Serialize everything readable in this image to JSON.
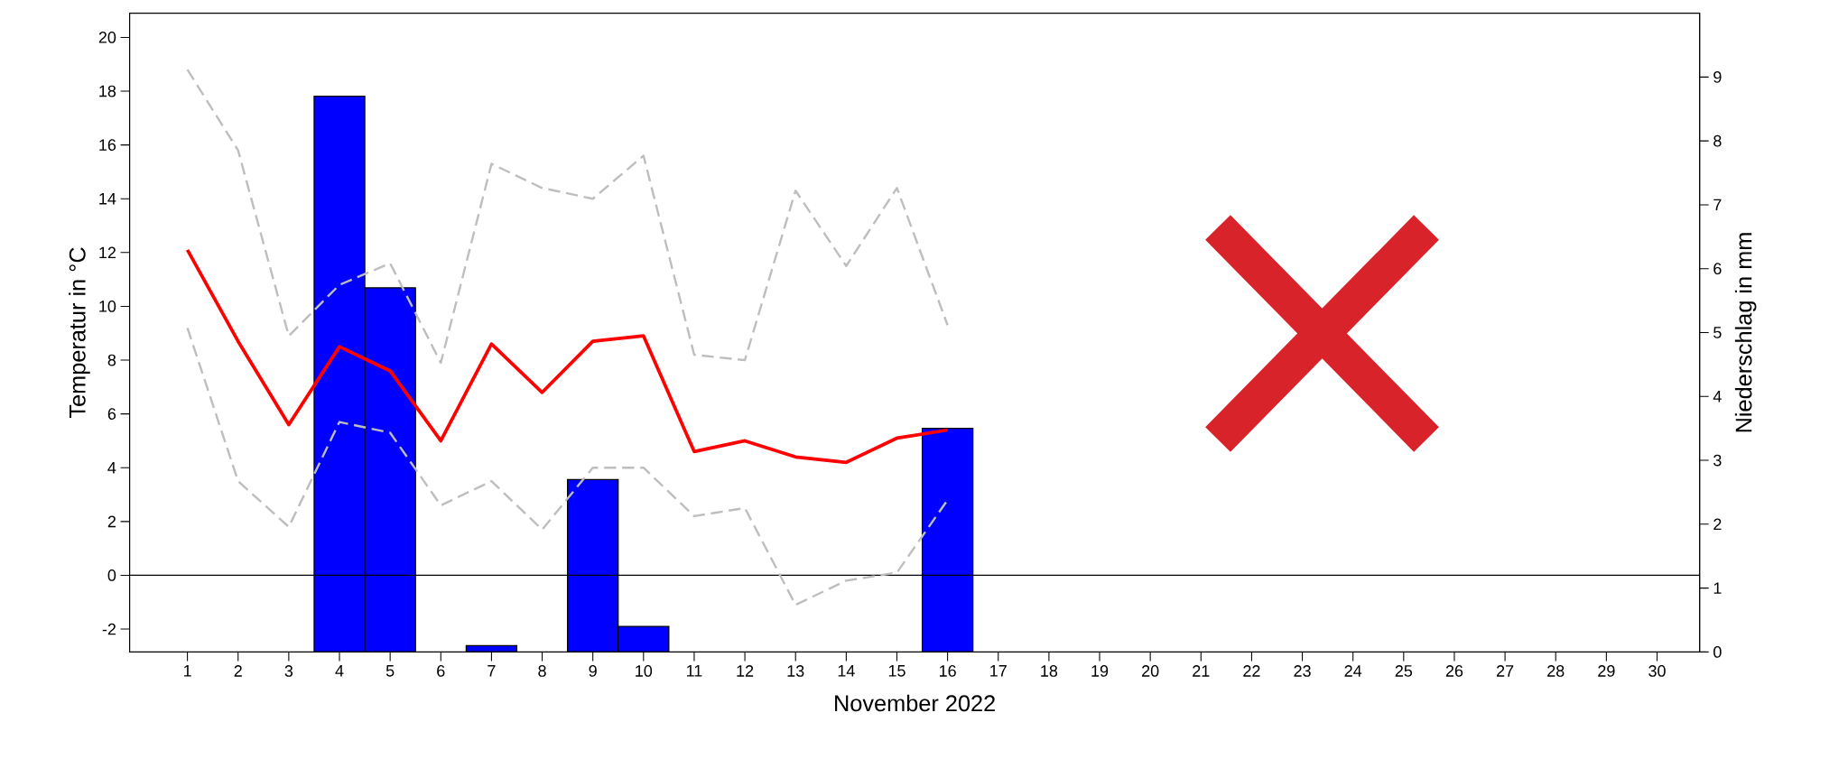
{
  "chart_data": {
    "type": "line",
    "xlabel": "November 2022",
    "ylabel": "Temperatur in °C",
    "y2label": "Niederschlag in mm",
    "categories": [
      "1",
      "2",
      "3",
      "4",
      "5",
      "6",
      "7",
      "8",
      "9",
      "10",
      "11",
      "12",
      "13",
      "14",
      "15",
      "16",
      "17",
      "18",
      "19",
      "20",
      "21",
      "22",
      "23",
      "24",
      "25",
      "26",
      "27",
      "28",
      "29",
      "30"
    ],
    "series": [
      {
        "type": "bar",
        "axis": "y2",
        "color": "#0000ff",
        "values": [
          null,
          null,
          null,
          8.7,
          5.7,
          null,
          0.1,
          null,
          2.7,
          0.4,
          null,
          null,
          null,
          null,
          null,
          3.5,
          null,
          null,
          null,
          null,
          null,
          null,
          null,
          null,
          null,
          null,
          null,
          null,
          null,
          null
        ]
      },
      {
        "color": "#bebebe",
        "line_style": "dashed",
        "values": [
          18.8,
          15.8,
          8.9,
          10.8,
          11.6,
          7.9,
          15.3,
          14.4,
          14.0,
          15.6,
          8.2,
          8.0,
          14.3,
          11.5,
          14.4,
          9.3,
          null,
          null,
          null,
          null,
          null,
          null,
          null,
          null,
          null,
          null,
          null,
          null,
          null,
          null
        ]
      },
      {
        "color": "#bebebe",
        "line_style": "dashed",
        "values": [
          9.2,
          3.5,
          1.8,
          5.7,
          5.3,
          2.6,
          3.5,
          1.7,
          4.0,
          4.0,
          2.2,
          2.5,
          -1.1,
          -0.2,
          0.1,
          2.8,
          null,
          null,
          null,
          null,
          null,
          null,
          null,
          null,
          null,
          null,
          null,
          null,
          null,
          null
        ]
      },
      {
        "color": "#ff0000",
        "line_style": "solid",
        "values": [
          12.1,
          8.7,
          5.6,
          8.5,
          7.6,
          5.0,
          8.6,
          6.8,
          8.7,
          8.9,
          4.6,
          5.0,
          4.4,
          4.2,
          5.1,
          5.4,
          null,
          null,
          null,
          null,
          null,
          null,
          null,
          null,
          null,
          null,
          null,
          null,
          null,
          null
        ]
      }
    ],
    "ylim": [
      -2.85,
      20.9
    ],
    "yticks": [
      -2,
      0,
      2,
      4,
      6,
      8,
      10,
      12,
      14,
      16,
      18,
      20
    ],
    "y2lim": [
      0,
      10
    ],
    "y2ticks": [
      0,
      1,
      2,
      3,
      4,
      5,
      6,
      7,
      8,
      9
    ],
    "ref_lines": [
      {
        "axis": "y",
        "value": 0,
        "color": "#000000"
      }
    ]
  }
}
